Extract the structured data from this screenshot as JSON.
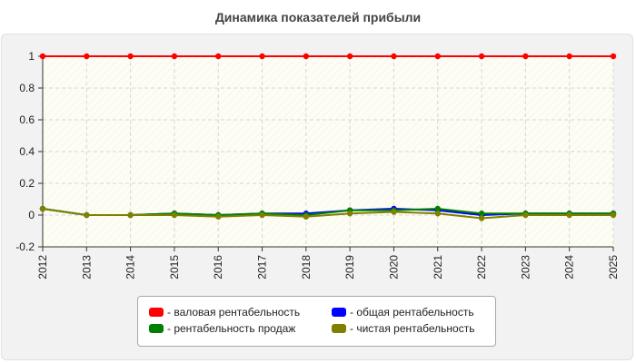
{
  "chart_data": {
    "type": "line",
    "title": "Динамика показателей прибыли",
    "xlabel": "",
    "ylabel": "",
    "categories": [
      "2012",
      "2013",
      "2014",
      "2015",
      "2016",
      "2017",
      "2018",
      "2019",
      "2020",
      "2021",
      "2022",
      "2023",
      "2024",
      "2025"
    ],
    "ylim": [
      -0.2,
      1
    ],
    "yticks": [
      "-0.2",
      "0",
      "0.2",
      "0.4",
      "0.6",
      "0.8",
      "1"
    ],
    "grid": true,
    "legend_position": "bottom",
    "series": [
      {
        "name": "- валовая рентабельность",
        "color": "#ff0000",
        "values": [
          1,
          1,
          1,
          1,
          1,
          1,
          1,
          1,
          1,
          1,
          1,
          1,
          1,
          1
        ]
      },
      {
        "name": "- общая рентабельность",
        "color": "#0000ff",
        "values": [
          0.04,
          0.0,
          0.0,
          0.01,
          0.0,
          0.01,
          0.01,
          0.03,
          0.04,
          0.03,
          0.0,
          0.01,
          0.01,
          0.01
        ]
      },
      {
        "name": "- рентабельность продаж",
        "color": "#008000",
        "values": [
          0.04,
          0.0,
          0.0,
          0.01,
          0.0,
          0.01,
          0.0,
          0.03,
          0.03,
          0.04,
          0.01,
          0.01,
          0.01,
          0.01
        ]
      },
      {
        "name": "- чистая рентабельность",
        "color": "#808000",
        "values": [
          0.04,
          0.0,
          0.0,
          0.0,
          -0.01,
          0.0,
          -0.01,
          0.01,
          0.02,
          0.01,
          -0.02,
          0.0,
          0.0,
          0.0
        ]
      }
    ]
  }
}
